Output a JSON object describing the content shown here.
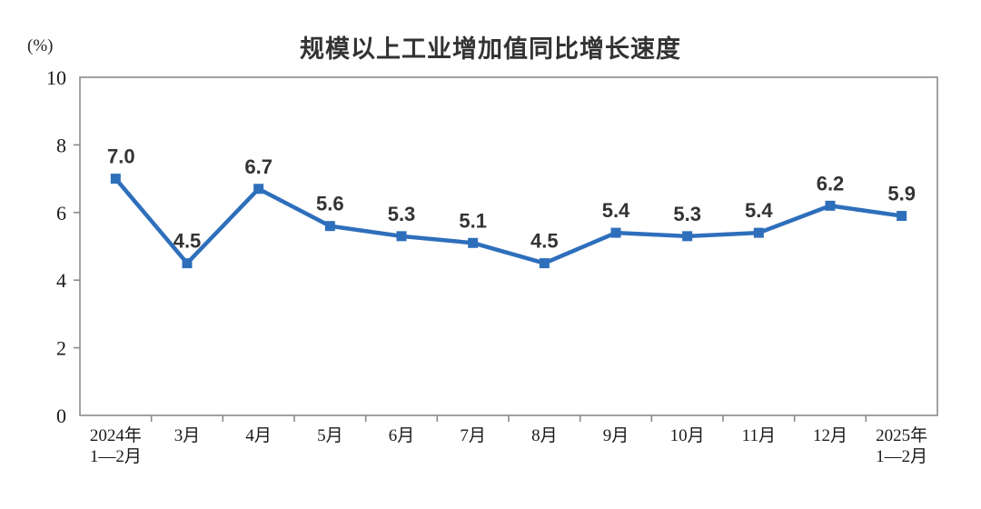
{
  "title": "规模以上工业增加值同比增长速度",
  "unit_label": "(%)",
  "chart_data": {
    "type": "line",
    "title": "规模以上工业增加值同比增长速度",
    "xlabel": "",
    "ylabel": "(%)",
    "categories": [
      [
        "2024年",
        "1—2月"
      ],
      [
        "3月"
      ],
      [
        "4月"
      ],
      [
        "5月"
      ],
      [
        "6月"
      ],
      [
        "7月"
      ],
      [
        "8月"
      ],
      [
        "9月"
      ],
      [
        "10月"
      ],
      [
        "11月"
      ],
      [
        "12月"
      ],
      [
        "2025年",
        "1—2月"
      ]
    ],
    "values": [
      7.0,
      4.5,
      6.7,
      5.6,
      5.3,
      5.1,
      4.5,
      5.4,
      5.3,
      5.4,
      6.2,
      5.9
    ],
    "value_labels": [
      "7.0",
      "4.5",
      "6.7",
      "5.6",
      "5.3",
      "5.1",
      "4.5",
      "5.4",
      "5.3",
      "5.4",
      "6.2",
      "5.9"
    ],
    "ylim": [
      0,
      10
    ],
    "yticks": [
      0,
      2,
      4,
      6,
      8,
      10
    ],
    "grid": false,
    "legend": "none",
    "marker": "square",
    "line_color": "#2e6fbc",
    "marker_color": "#2e6fbc",
    "axis_color": "#8a8a8a",
    "tick_label_color": "#1a1a1a",
    "data_label_color": "#333333"
  }
}
